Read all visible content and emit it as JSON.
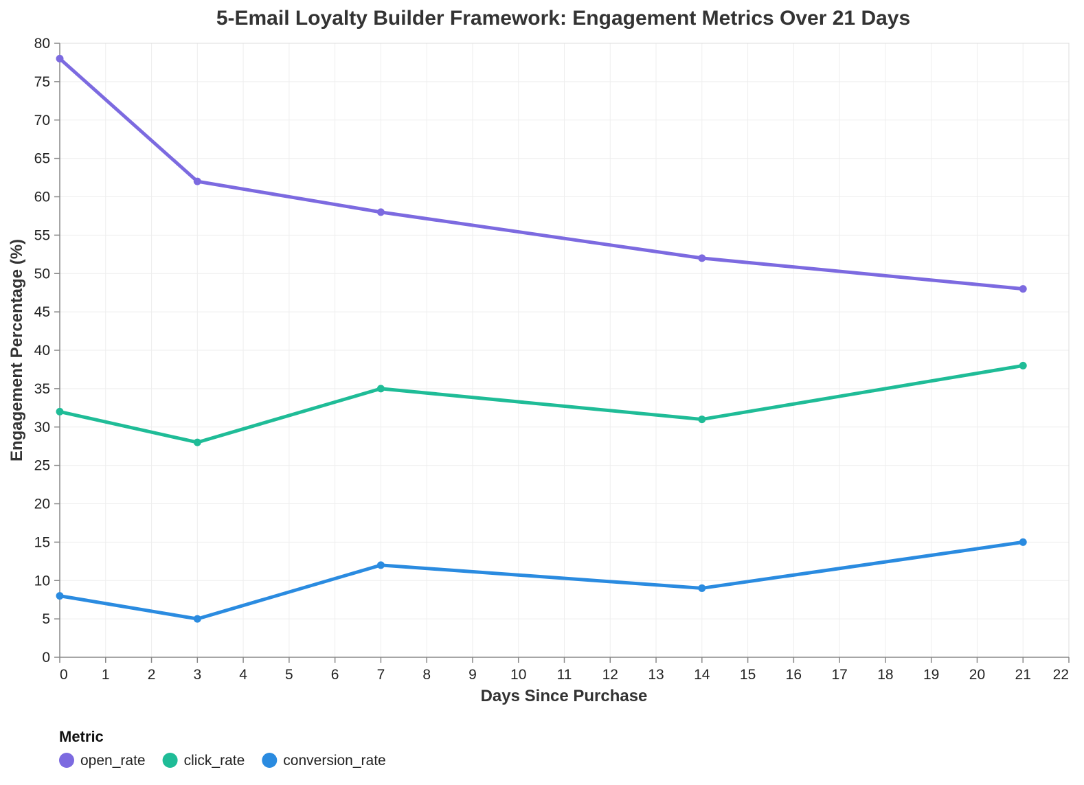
{
  "chart_data": {
    "type": "line",
    "title": "5-Email Loyalty Builder Framework: Engagement Metrics Over 21 Days",
    "xlabel": "Days Since Purchase",
    "ylabel": "Engagement Percentage (%)",
    "x": [
      0,
      3,
      7,
      14,
      21
    ],
    "xlim": [
      0,
      22
    ],
    "ylim": [
      0,
      80
    ],
    "x_ticks": [
      0,
      1,
      2,
      3,
      4,
      5,
      6,
      7,
      8,
      9,
      10,
      11,
      12,
      13,
      14,
      15,
      16,
      17,
      18,
      19,
      20,
      21,
      22
    ],
    "y_ticks": [
      0,
      5,
      10,
      15,
      20,
      25,
      30,
      35,
      40,
      45,
      50,
      55,
      60,
      65,
      70,
      75,
      80
    ],
    "grid": true,
    "legend": {
      "title": "Metric",
      "placement": "bottom-left"
    },
    "series": [
      {
        "name": "open_rate",
        "color": "#7c6ae0",
        "values": [
          78,
          62,
          58,
          52,
          48
        ]
      },
      {
        "name": "click_rate",
        "color": "#1fbc97",
        "values": [
          32,
          28,
          35,
          31,
          38
        ]
      },
      {
        "name": "conversion_rate",
        "color": "#2a8be0",
        "values": [
          8,
          5,
          12,
          9,
          15
        ]
      }
    ]
  }
}
